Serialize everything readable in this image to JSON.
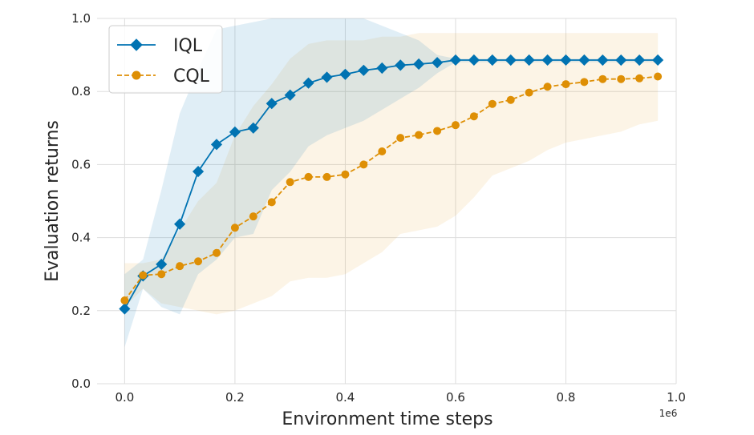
{
  "chart_data": {
    "type": "line",
    "xlabel": "Environment time steps",
    "ylabel": "Evaluation returns",
    "x_offset_label": "1e6",
    "xlim": [
      -0.05,
      1.0
    ],
    "ylim": [
      0.0,
      1.0
    ],
    "xticks": [
      "0.0",
      "0.2",
      "0.4",
      "0.6",
      "0.8",
      "1.0"
    ],
    "yticks": [
      "0.0",
      "0.2",
      "0.4",
      "0.6",
      "0.8",
      "1.0"
    ],
    "grid": true,
    "legend_position": "top-left",
    "x": [
      0.0,
      0.0333,
      0.0667,
      0.1,
      0.1333,
      0.1667,
      0.2,
      0.2333,
      0.2667,
      0.3,
      0.3333,
      0.3667,
      0.4,
      0.4333,
      0.4667,
      0.5,
      0.5333,
      0.5667,
      0.6,
      0.6333,
      0.6667,
      0.7,
      0.7333,
      0.7667,
      0.8,
      0.8333,
      0.8667,
      0.9,
      0.9333,
      0.9667
    ],
    "series": [
      {
        "name": "IQL",
        "color": "#0173b2",
        "marker": "diamond",
        "line_style": "solid",
        "values": [
          0.205,
          0.295,
          0.327,
          0.437,
          0.581,
          0.655,
          0.689,
          0.7,
          0.767,
          0.79,
          0.823,
          0.839,
          0.847,
          0.858,
          0.864,
          0.872,
          0.875,
          0.879,
          0.886,
          0.886,
          0.886,
          0.886,
          0.886,
          0.886,
          0.886,
          0.886,
          0.886,
          0.886,
          0.886,
          0.886
        ],
        "band_upper": [
          0.3,
          0.34,
          0.53,
          0.74,
          0.86,
          0.97,
          0.98,
          0.99,
          1.0,
          1.0,
          1.0,
          1.0,
          1.0,
          1.0,
          0.98,
          0.96,
          0.94,
          0.9,
          0.89,
          0.89,
          0.89,
          0.89,
          0.89,
          0.89,
          0.89,
          0.89,
          0.89,
          0.89,
          0.89,
          0.89
        ],
        "band_lower": [
          0.1,
          0.26,
          0.21,
          0.19,
          0.3,
          0.34,
          0.4,
          0.41,
          0.53,
          0.58,
          0.65,
          0.68,
          0.7,
          0.72,
          0.75,
          0.78,
          0.81,
          0.85,
          0.88,
          0.88,
          0.88,
          0.88,
          0.88,
          0.88,
          0.88,
          0.88,
          0.88,
          0.88,
          0.88,
          0.88
        ]
      },
      {
        "name": "CQL",
        "color": "#de8f05",
        "marker": "circle",
        "line_style": "dashed",
        "values": [
          0.228,
          0.297,
          0.3,
          0.322,
          0.335,
          0.358,
          0.427,
          0.458,
          0.497,
          0.552,
          0.566,
          0.566,
          0.573,
          0.6,
          0.636,
          0.673,
          0.681,
          0.692,
          0.708,
          0.732,
          0.766,
          0.777,
          0.797,
          0.813,
          0.82,
          0.826,
          0.834,
          0.834,
          0.836,
          0.841
        ],
        "band_upper": [
          0.33,
          0.33,
          0.34,
          0.42,
          0.5,
          0.55,
          0.68,
          0.76,
          0.82,
          0.89,
          0.93,
          0.94,
          0.94,
          0.94,
          0.95,
          0.95,
          0.96,
          0.96,
          0.96,
          0.96,
          0.96,
          0.96,
          0.96,
          0.96,
          0.96,
          0.96,
          0.96,
          0.96,
          0.96,
          0.96
        ],
        "band_lower": [
          0.21,
          0.26,
          0.22,
          0.21,
          0.2,
          0.19,
          0.2,
          0.22,
          0.24,
          0.28,
          0.29,
          0.29,
          0.3,
          0.33,
          0.36,
          0.41,
          0.42,
          0.43,
          0.46,
          0.51,
          0.57,
          0.59,
          0.61,
          0.64,
          0.66,
          0.67,
          0.68,
          0.69,
          0.71,
          0.72
        ]
      }
    ]
  }
}
